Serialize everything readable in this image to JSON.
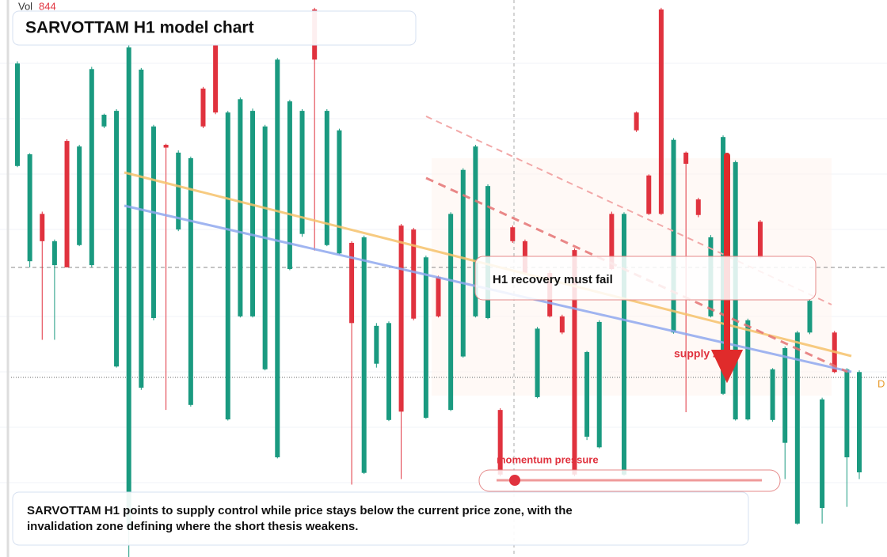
{
  "chart_data": {
    "type": "candlestick",
    "title": "SARVOTTAM H1 model chart",
    "volume_label": "Vol",
    "volume_value": "844",
    "callout": "H1 recovery must fail",
    "zone_label": "supply zone",
    "gauge_label": "momentum pressure",
    "edge_label": "D",
    "summary": "SARVOTTAM H1 points to supply control while price stays below the current price zone, with the invalidation zone defining where the short thesis weakens.",
    "up_color": "#1a9a80",
    "down_color": "#e0323e",
    "ylim": [
      0,
      100
    ],
    "candles": [
      [
        70.2,
        89,
        70,
        88.6
      ],
      [
        53.1,
        72.5,
        52,
        72.3
      ],
      [
        61.6,
        62,
        39,
        56.7
      ],
      [
        52.4,
        57,
        39,
        56.7
      ],
      [
        74.7,
        75,
        52,
        52
      ],
      [
        56,
        74,
        55.8,
        73.7
      ],
      [
        52.4,
        88,
        52,
        87.6
      ],
      [
        77.3,
        79.6,
        77,
        79.4
      ],
      [
        34.2,
        80.4,
        34,
        80.1
      ],
      [
        5,
        92,
        0,
        91.5
      ],
      [
        30.4,
        87.8,
        30,
        87.5
      ],
      [
        42.9,
        77.6,
        42.5,
        77.3
      ],
      [
        74,
        74.2,
        26.4,
        73.5
      ],
      [
        58.8,
        73,
        58.5,
        72.6
      ],
      [
        27.3,
        71.9,
        27,
        71.6
      ],
      [
        84.1,
        84.4,
        77,
        77.3
      ],
      [
        91.9,
        92.2,
        79.5,
        79.8
      ],
      [
        24.7,
        80.1,
        24.5,
        79.8
      ],
      [
        43.2,
        82.5,
        43,
        82.2
      ],
      [
        43.2,
        80.5,
        43,
        80.1
      ],
      [
        33.7,
        77.6,
        33.5,
        77.3
      ],
      [
        17.9,
        89.6,
        17.7,
        89.3
      ],
      [
        51.7,
        82.1,
        51.5,
        81.8
      ],
      [
        58,
        80.4,
        57.5,
        80.1
      ],
      [
        98.3,
        98.6,
        55,
        89.3
      ],
      [
        56,
        80.4,
        55.8,
        80.1
      ],
      [
        54.5,
        76.9,
        54.3,
        76.6
      ],
      [
        56.4,
        56.7,
        13,
        42
      ],
      [
        15.1,
        57.7,
        14.9,
        57.4
      ],
      [
        34.7,
        42,
        34,
        41.5
      ],
      [
        24.6,
        42.3,
        24.4,
        42
      ],
      [
        59.5,
        59.8,
        14,
        26.1
      ],
      [
        58.8,
        59.1,
        42.5,
        42.8
      ],
      [
        25,
        54.1,
        24.8,
        53.8
      ],
      [
        50.3,
        50.5,
        43,
        43.2
      ],
      [
        26.4,
        61.9,
        26.2,
        61.6
      ],
      [
        36,
        69.8,
        35.8,
        69.5
      ],
      [
        43.2,
        74,
        43,
        73.7
      ],
      [
        42.9,
        66.9,
        42.7,
        66.6
      ],
      [
        26.4,
        26.7,
        14.5,
        14.8
      ],
      [
        59.2,
        59.5,
        56.4,
        56.7
      ],
      [
        56.7,
        57,
        50.7,
        51
      ],
      [
        28.7,
        41.3,
        28.5,
        41
      ],
      [
        51,
        51.5,
        43,
        43.2
      ],
      [
        43.2,
        43.5,
        40,
        40.3
      ],
      [
        55.1,
        55.4,
        14.5,
        14.8
      ],
      [
        21.6,
        37,
        21,
        36.8
      ],
      [
        19.7,
        42.5,
        19.5,
        42.2
      ],
      [
        61.6,
        62,
        51.5,
        51.7
      ],
      [
        14.8,
        61.9,
        14.6,
        61.6
      ],
      [
        79.8,
        80,
        76.3,
        76.6
      ],
      [
        68.5,
        68.7,
        61.4,
        61.6
      ],
      [
        98.3,
        98.6,
        61.4,
        61.6
      ],
      [
        40.3,
        75.2,
        40.1,
        74.9
      ],
      [
        72.6,
        72.8,
        26,
        70.6
      ],
      [
        64.2,
        64.5,
        61,
        61.4
      ],
      [
        43.2,
        57.8,
        43,
        57.4
      ],
      [
        29.3,
        75.7,
        29.1,
        75.4
      ],
      [
        24.7,
        71.2,
        24.5,
        70.9
      ],
      [
        24.7,
        42.8,
        24.5,
        42.5
      ],
      [
        60.2,
        60.5,
        53.6,
        53.8
      ],
      [
        24.6,
        33.9,
        24.3,
        33.7
      ],
      [
        20.5,
        37.8,
        14,
        37.5
      ],
      [
        6,
        40.6,
        5.8,
        40.3
      ],
      [
        40.3,
        46.3,
        40,
        46
      ],
      [
        8.8,
        28.6,
        6,
        28.3
      ],
      [
        40.3,
        40.6,
        33,
        33.2
      ],
      [
        17.9,
        33.9,
        9,
        33.7
      ],
      [
        15.2,
        33.5,
        14,
        33.2
      ]
    ]
  }
}
